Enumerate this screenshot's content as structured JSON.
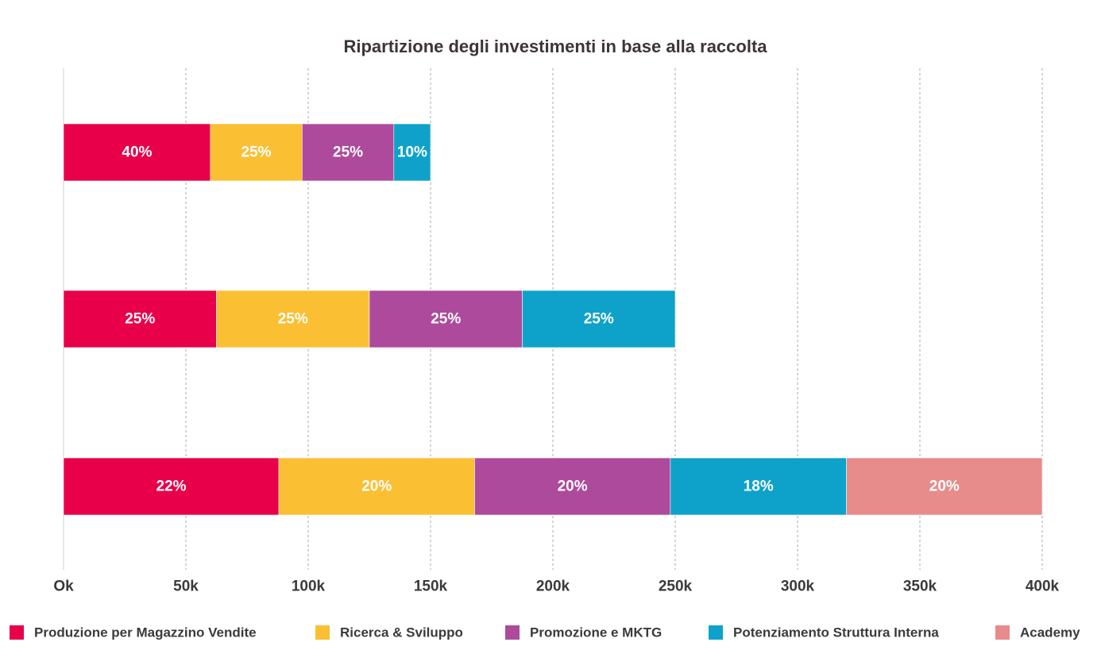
{
  "chart_data": {
    "type": "bar",
    "orientation": "horizontal",
    "stacked": true,
    "title": "Ripartizione degli investimenti in base alla raccolta",
    "xlim": [
      0,
      400000
    ],
    "x_ticks": [
      0,
      50000,
      100000,
      150000,
      200000,
      250000,
      300000,
      350000,
      400000
    ],
    "x_tick_labels": [
      "Ok",
      "50k",
      "100k",
      "150k",
      "200k",
      "250k",
      "300k",
      "350k",
      "400k"
    ],
    "grid": "vertical-dashed",
    "legend_position": "bottom",
    "series": [
      {
        "name": "Produzione per Magazzino Vendite",
        "color": "#e8004a"
      },
      {
        "name": "Ricerca & Sviluppo",
        "color": "#fbbf33"
      },
      {
        "name": "Promozione e MKTG",
        "color": "#ad4a9c"
      },
      {
        "name": "Potenziamento Struttura Interna",
        "color": "#0ea2ca"
      },
      {
        "name": "Academy",
        "color": "#e78b8b"
      }
    ],
    "bars": [
      {
        "total": 150000,
        "segments": [
          {
            "series": 0,
            "value": 60000,
            "label": "40%"
          },
          {
            "series": 1,
            "value": 37500,
            "label": "25%"
          },
          {
            "series": 2,
            "value": 37500,
            "label": "25%"
          },
          {
            "series": 3,
            "value": 15000,
            "label": "10%"
          }
        ]
      },
      {
        "total": 250000,
        "segments": [
          {
            "series": 0,
            "value": 62500,
            "label": "25%"
          },
          {
            "series": 1,
            "value": 62500,
            "label": "25%"
          },
          {
            "series": 2,
            "value": 62500,
            "label": "25%"
          },
          {
            "series": 3,
            "value": 62500,
            "label": "25%"
          }
        ]
      },
      {
        "total": 400000,
        "segments": [
          {
            "series": 0,
            "value": 88000,
            "label": "22%"
          },
          {
            "series": 1,
            "value": 80000,
            "label": "20%"
          },
          {
            "series": 2,
            "value": 80000,
            "label": "20%"
          },
          {
            "series": 3,
            "value": 72000,
            "label": "18%"
          },
          {
            "series": 4,
            "value": 80000,
            "label": "20%"
          }
        ]
      }
    ]
  }
}
